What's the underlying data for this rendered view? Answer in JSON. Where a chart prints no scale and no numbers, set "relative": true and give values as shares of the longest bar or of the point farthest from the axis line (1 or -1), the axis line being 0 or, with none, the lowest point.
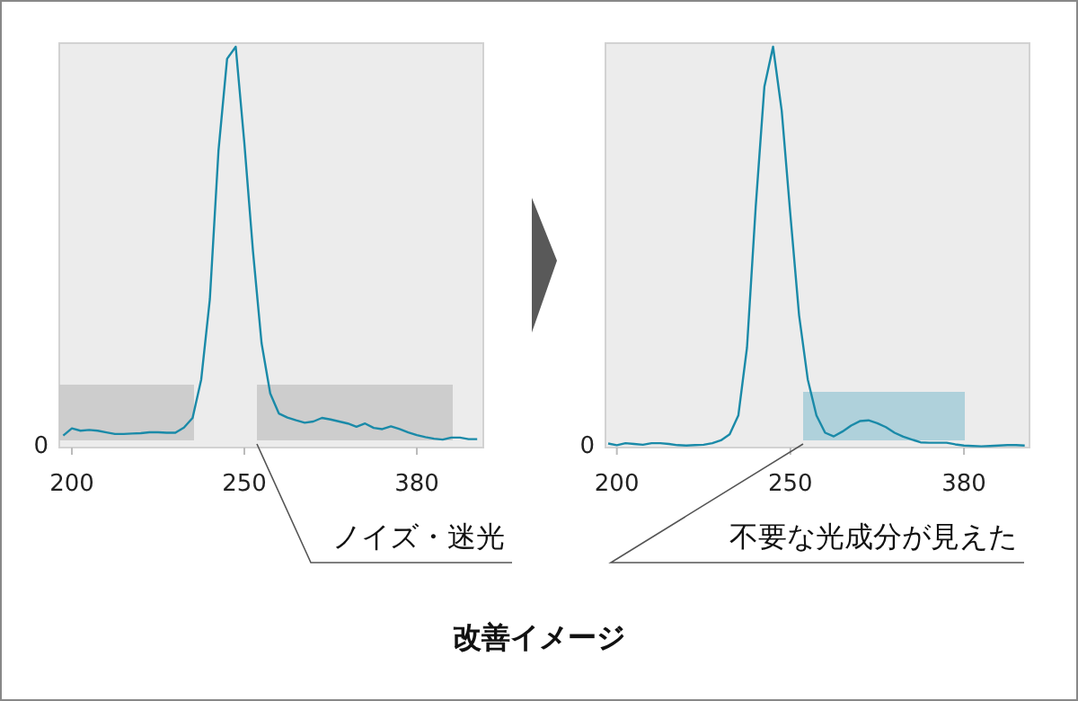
{
  "chart_data": [
    {
      "type": "line",
      "title": "改善イメージ",
      "relative": true,
      "annotations": [
        "0",
        "ノイズ・迷光"
      ],
      "categories": [
        null,
        "200",
        null,
        null,
        null,
        null,
        null,
        null,
        null,
        null,
        null,
        null,
        null,
        null,
        null,
        null,
        null,
        null,
        null,
        null,
        null,
        "250",
        null,
        null,
        null,
        null,
        null,
        null,
        null,
        null,
        null,
        null,
        null,
        null,
        null,
        null,
        null,
        null,
        null,
        null,
        null,
        "380",
        null,
        null,
        null,
        null,
        null,
        null,
        null
      ],
      "series": [
        {
          "color": "#1a8aa8",
          "values": [
            0.03,
            0.048,
            0.042,
            0.044,
            0.042,
            0.038,
            0.034,
            0.034,
            0.035,
            0.036,
            0.038,
            0.038,
            0.037,
            0.037,
            0.05,
            0.074,
            0.17,
            0.37,
            0.74,
            0.97,
            1,
            0.76,
            0.49,
            0.26,
            0.135,
            0.085,
            0.075,
            0.068,
            0.062,
            0.065,
            0.074,
            0.07,
            0.065,
            0.06,
            0.052,
            0.06,
            0.049,
            0.046,
            0.053,
            0.046,
            0.038,
            0.031,
            0.026,
            0.022,
            0.02,
            0.025,
            0.025,
            0.021,
            0.021
          ]
        }
      ]
    },
    {
      "type": "line",
      "relative": true,
      "annotations": [
        "0",
        "不要な光成分が見えた"
      ],
      "categories": [
        null,
        "200",
        null,
        null,
        null,
        null,
        null,
        null,
        null,
        null,
        null,
        null,
        null,
        null,
        null,
        null,
        null,
        null,
        null,
        null,
        null,
        "250",
        null,
        null,
        null,
        null,
        null,
        null,
        null,
        null,
        null,
        null,
        null,
        null,
        null,
        null,
        null,
        null,
        null,
        null,
        null,
        "380",
        null,
        null,
        null,
        null,
        null,
        null,
        null
      ],
      "series": [
        {
          "color": "#1a8aa8",
          "values": [
            0.01,
            0.006,
            0.011,
            0.009,
            0.007,
            0.011,
            0.011,
            0.009,
            0.006,
            0.005,
            0.006,
            0.007,
            0.011,
            0.018,
            0.033,
            0.08,
            0.25,
            0.6,
            0.9,
            1,
            0.84,
            0.58,
            0.33,
            0.17,
            0.08,
            0.037,
            0.028,
            0.04,
            0.055,
            0.066,
            0.068,
            0.061,
            0.051,
            0.037,
            0.027,
            0.02,
            0.013,
            0.012,
            0.012,
            0.012,
            0.008,
            0.005,
            0.004,
            0.003,
            0.004,
            0.005,
            0.006,
            0.006,
            0.005
          ]
        }
      ]
    }
  ]
}
